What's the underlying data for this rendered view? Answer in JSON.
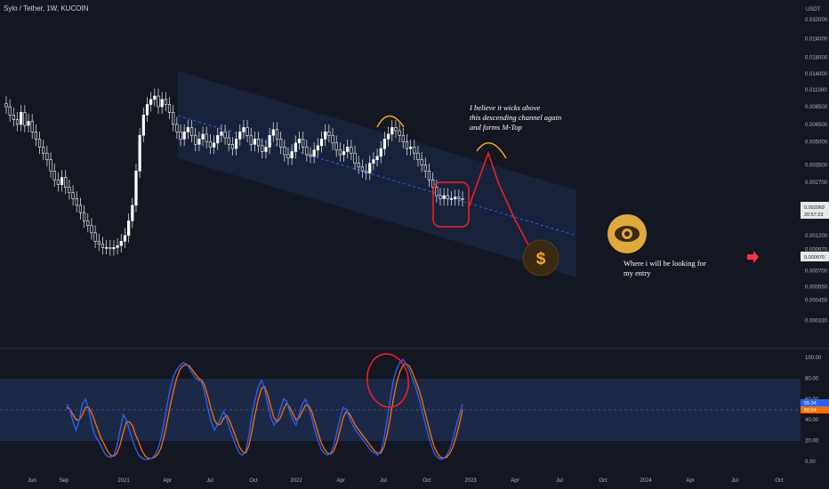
{
  "header": {
    "title": "Sylo / Tether, 1W, KUCOIN"
  },
  "colors": {
    "background": "#131722",
    "bull": "#ffffff",
    "bear": "#ffffff",
    "channel": "#1e2a4a",
    "stoch_k": "#2962ff",
    "stoch_d": "#ff6d00",
    "annotation_red": "#ff1e1e",
    "annotation_orange": "#f5a623"
  },
  "chart_data": [
    {
      "type": "candlestick",
      "title": "Sylo / Tether, 1W, KUCOIN",
      "yscale": "log",
      "currency": "USDT",
      "y_ticks": [
        "0.032000",
        "0.024000",
        "0.018000",
        "0.014000",
        "0.011000",
        "0.008500",
        "0.006500",
        "0.005000",
        "0.003500",
        "0.002700",
        "0.001600",
        "0.001200",
        "0.000970",
        "0.000700",
        "0.000550",
        "0.000450",
        "0.000330"
      ],
      "x_ticks": [
        "Jun",
        "Sep",
        "2021",
        "Apr",
        "Jul",
        "Oct",
        "2022",
        "Apr",
        "Jul",
        "Oct",
        "2023",
        "Apr",
        "Jul",
        "Oct",
        "2024",
        "Apr",
        "Jul",
        "Oct"
      ],
      "last_price": "0.002069",
      "countdown": "20:57:23",
      "marker_price": "0.000970",
      "close_series": [
        0.0085,
        0.0075,
        0.007,
        0.0065,
        0.0078,
        0.0064,
        0.0068,
        0.0058,
        0.0052,
        0.0046,
        0.0042,
        0.0038,
        0.0032,
        0.0028,
        0.0026,
        0.0029,
        0.0025,
        0.0023,
        0.0021,
        0.0019,
        0.0017,
        0.0015,
        0.0014,
        0.00125,
        0.0011,
        0.00105,
        0.001,
        0.001,
        0.00098,
        0.001,
        0.00103,
        0.0011,
        0.0012,
        0.0015,
        0.0019,
        0.0032,
        0.0055,
        0.0075,
        0.0088,
        0.0095,
        0.01,
        0.0085,
        0.0095,
        0.0088,
        0.0078,
        0.0065,
        0.0058,
        0.0052,
        0.0058,
        0.0062,
        0.0055,
        0.0048,
        0.0052,
        0.0056,
        0.005,
        0.0046,
        0.0049,
        0.0055,
        0.0058,
        0.0053,
        0.0048,
        0.0045,
        0.0052,
        0.0058,
        0.0062,
        0.0055,
        0.0048,
        0.0052,
        0.0047,
        0.0043,
        0.0046,
        0.0055,
        0.006,
        0.0052,
        0.0046,
        0.0041,
        0.0039,
        0.0043,
        0.0049,
        0.0052,
        0.0046,
        0.0041,
        0.004,
        0.0044,
        0.0047,
        0.0052,
        0.0058,
        0.0055,
        0.0049,
        0.0044,
        0.0041,
        0.0043,
        0.0046,
        0.0042,
        0.0036,
        0.0034,
        0.0032,
        0.0031,
        0.0036,
        0.0038,
        0.004,
        0.0045,
        0.0052,
        0.0056,
        0.0062,
        0.0059,
        0.0055,
        0.005,
        0.0045,
        0.0046,
        0.0042,
        0.0038,
        0.0035,
        0.0032,
        0.0028,
        0.0025,
        0.0022,
        0.0021,
        0.0022,
        0.0021,
        0.0021,
        0.00215,
        0.0021,
        0.00207
      ],
      "annotations": [
        "I believe it wicks above",
        "this descending channel again",
        "and forms M-Top",
        "Where i will be looking for",
        "my entry"
      ]
    },
    {
      "type": "line",
      "title": "",
      "y_ticks": [
        "100.00",
        "80.00",
        "60.00",
        "40.00",
        "20.00",
        "0.00"
      ],
      "ylim": [
        0,
        100
      ],
      "band": [
        20,
        80
      ],
      "last_k": "55.34",
      "last_d": "50.04",
      "series": [
        {
          "values": [
            55,
            50,
            38,
            30,
            40,
            55,
            60,
            50,
            35,
            25,
            20,
            15,
            8,
            5,
            4,
            6,
            15,
            30,
            45,
            40,
            30,
            20,
            12,
            6,
            3,
            2,
            2,
            3,
            6,
            12,
            22,
            38,
            55,
            70,
            82,
            88,
            92,
            95,
            94,
            90,
            85,
            80,
            78,
            76,
            65,
            50,
            38,
            30,
            35,
            42,
            48,
            40,
            30,
            22,
            14,
            8,
            6,
            10,
            25,
            45,
            60,
            72,
            78,
            70,
            55,
            42,
            35,
            40,
            50,
            60,
            58,
            48,
            40,
            35,
            45,
            55,
            60,
            52,
            42,
            30,
            20,
            12,
            8,
            6,
            8,
            15,
            28,
            42,
            52,
            50,
            42,
            35,
            30,
            26,
            22,
            18,
            14,
            10,
            8,
            6,
            10,
            22,
            40,
            60,
            78,
            88,
            95,
            98,
            94,
            88,
            80,
            72,
            62,
            50,
            38,
            26,
            16,
            8,
            4,
            2,
            3,
            6,
            12,
            22,
            34,
            45,
            55
          ]
        },
        {
          "values": [
            52,
            50,
            45,
            40,
            40,
            45,
            52,
            52,
            46,
            38,
            30,
            22,
            16,
            10,
            6,
            5,
            8,
            16,
            28,
            38,
            38,
            34,
            25,
            18,
            10,
            5,
            3,
            3,
            4,
            7,
            13,
            24,
            38,
            54,
            68,
            80,
            88,
            92,
            93,
            92,
            88,
            84,
            80,
            78,
            72,
            62,
            50,
            40,
            35,
            36,
            42,
            44,
            38,
            30,
            22,
            14,
            9,
            8,
            15,
            30,
            46,
            60,
            70,
            72,
            64,
            52,
            42,
            38,
            42,
            50,
            56,
            52,
            46,
            40,
            42,
            48,
            54,
            54,
            48,
            38,
            28,
            18,
            12,
            8,
            7,
            10,
            18,
            30,
            42,
            48,
            46,
            40,
            34,
            30,
            26,
            22,
            18,
            14,
            10,
            8,
            8,
            14,
            26,
            42,
            60,
            75,
            86,
            92,
            94,
            92,
            86,
            78,
            70,
            60,
            48,
            36,
            24,
            14,
            8,
            4,
            3,
            4,
            8,
            14,
            24,
            36,
            50
          ]
        }
      ]
    }
  ]
}
